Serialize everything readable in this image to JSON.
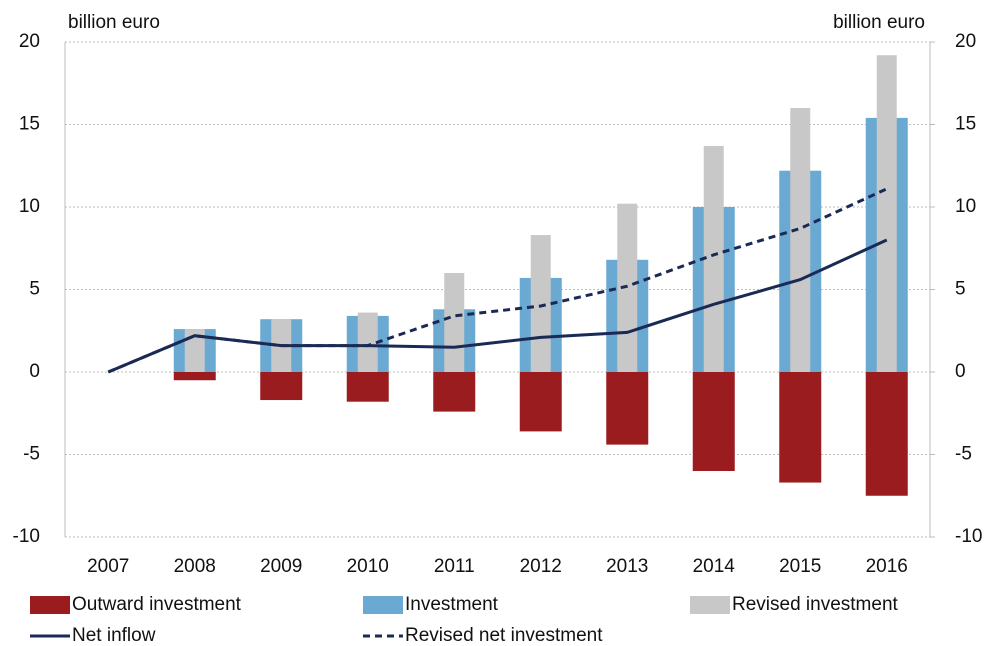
{
  "chart_data": {
    "type": "bar",
    "ylabel": "billion euro",
    "y2label": "billion euro",
    "categories": [
      "2007",
      "2008",
      "2009",
      "2010",
      "2011",
      "2012",
      "2013",
      "2014",
      "2015",
      "2016"
    ],
    "series": [
      {
        "name": "Outward investment",
        "type": "bar",
        "color": "#9b1c1f",
        "values": [
          null,
          -0.5,
          -1.7,
          -1.8,
          -2.4,
          -3.6,
          -4.4,
          -6.0,
          -6.7,
          -7.5
        ]
      },
      {
        "name": "Investment",
        "type": "bar",
        "color": "#6aa9d2",
        "values": [
          null,
          2.6,
          3.2,
          3.4,
          3.8,
          5.7,
          6.8,
          10.0,
          12.2,
          15.4
        ]
      },
      {
        "name": "Revised investment",
        "type": "bar",
        "color": "#c8c8c8",
        "values": [
          null,
          2.6,
          3.2,
          3.6,
          6.0,
          8.3,
          10.2,
          13.7,
          16.0,
          19.2
        ]
      },
      {
        "name": "Net inflow",
        "type": "line",
        "color": "#1b2a55",
        "values": [
          0,
          2.2,
          1.6,
          1.6,
          1.5,
          2.1,
          2.4,
          4.1,
          5.6,
          8.0
        ]
      },
      {
        "name": "Revised net investment",
        "type": "line",
        "dashed": true,
        "color": "#1b2a55",
        "values": [
          0,
          2.2,
          1.6,
          1.6,
          3.4,
          4.0,
          5.2,
          7.1,
          8.7,
          11.1
        ]
      }
    ],
    "ylim": [
      -10,
      20
    ],
    "yticks": [
      -10,
      -5,
      0,
      5,
      10,
      15,
      20
    ],
    "y2lim": [
      -10,
      20
    ],
    "y2ticks": [
      -10,
      -5,
      0,
      5,
      10,
      15,
      20
    ],
    "grid": true
  }
}
